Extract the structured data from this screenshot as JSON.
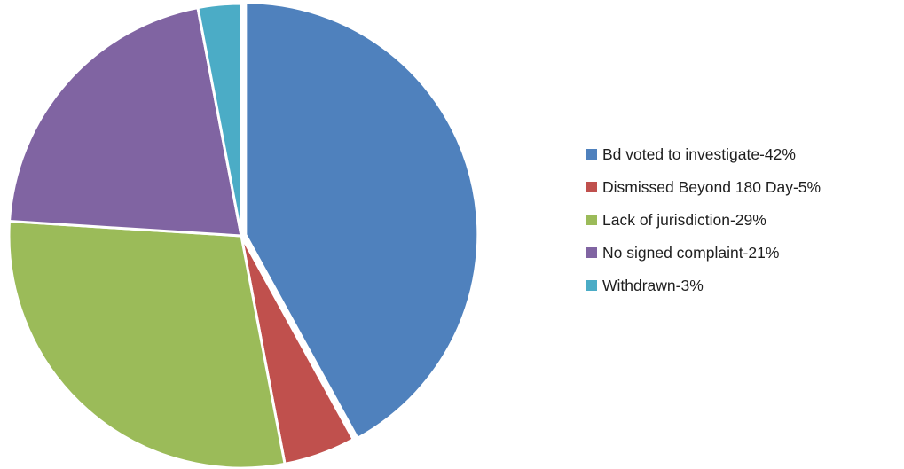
{
  "chart_data": {
    "type": "pie",
    "title": "",
    "legend_position": "right",
    "start_angle_deg": 0,
    "direction": "clockwise",
    "slices": [
      {
        "label": "Bd voted to investigate-42%",
        "value": 42,
        "color": "#4f81bd"
      },
      {
        "label": "Dismissed Beyond 180 Day-5%",
        "value": 5,
        "color": "#c0504d"
      },
      {
        "label": "Lack of jurisdiction-29%",
        "value": 29,
        "color": "#9bbb59"
      },
      {
        "label": "No signed complaint-21%",
        "value": 21,
        "color": "#8064a2"
      },
      {
        "label": "Withdrawn-3%",
        "value": 3,
        "color": "#4bacc6"
      }
    ]
  }
}
